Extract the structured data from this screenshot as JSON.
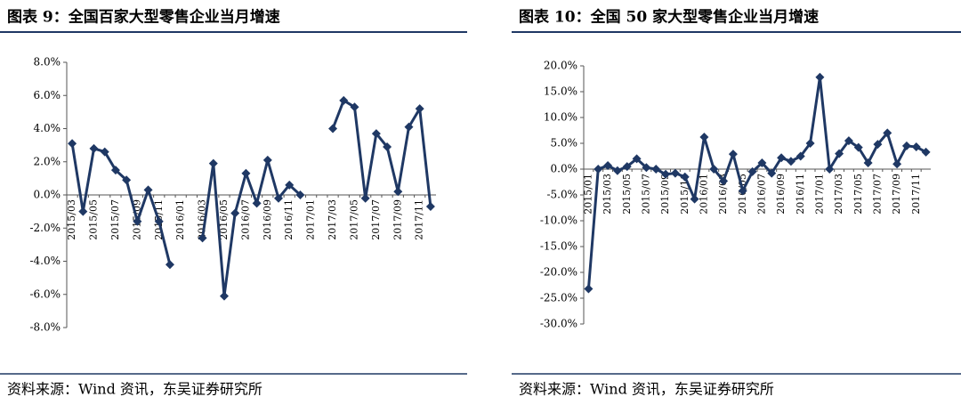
{
  "chart_data": [
    {
      "type": "line",
      "title": "图表 9：全国百家大型零售企业当月增速",
      "source": "资料来源：Wind 资讯，东吴证券研究所",
      "categories": [
        "2015/03",
        null,
        "2015/05",
        null,
        "2015/07",
        null,
        "2015/09",
        null,
        "2015/11",
        null,
        "2016/01",
        null,
        "2016/03",
        null,
        "2016/05",
        null,
        "2016/07",
        null,
        "2016/09",
        null,
        "2016/11",
        null,
        "2017/01",
        null,
        "2017/03",
        null,
        "2017/05",
        null,
        "2017/07",
        null,
        "2017/09",
        null,
        "2017/11",
        null
      ],
      "series": [
        {
          "color": "#1f3864",
          "values": [
            3.1,
            -1.0,
            2.8,
            2.6,
            1.5,
            0.9,
            -1.6,
            0.3,
            -1.6,
            -4.2,
            null,
            null,
            -2.6,
            1.9,
            -6.1,
            -1.1,
            1.3,
            -0.5,
            2.1,
            -0.2,
            0.6,
            0.0,
            null,
            null,
            4.0,
            5.7,
            5.3,
            -0.2,
            3.7,
            2.9,
            0.2,
            4.1,
            5.2,
            -0.7
          ]
        }
      ],
      "ylim": [
        -8,
        8
      ],
      "yticks": [
        {
          "value": -8,
          "label": "-8.0%"
        },
        {
          "value": -6,
          "label": "-6.0%"
        },
        {
          "value": -4,
          "label": "-4.0%"
        },
        {
          "value": -2,
          "label": "-2.0%"
        },
        {
          "value": 0,
          "label": "0.0%"
        },
        {
          "value": 2,
          "label": "2.0%"
        },
        {
          "value": 4,
          "label": "4.0%"
        },
        {
          "value": 6,
          "label": "6.0%"
        },
        {
          "value": 8,
          "label": "8.0%"
        }
      ]
    },
    {
      "type": "line",
      "title": "图表 10：全国 50 家大型零售企业当月增速",
      "source": "资料来源：Wind 资讯，东吴证券研究所",
      "categories": [
        "2015/01",
        null,
        "2015/03",
        null,
        "2015/05",
        null,
        "2015/07",
        null,
        "2015/09",
        null,
        "2015/11",
        null,
        "2016/01",
        null,
        "2016/03",
        null,
        "2016/05",
        null,
        "2016/07",
        null,
        "2016/09",
        null,
        "2016/11",
        null,
        "2017/01",
        null,
        "2017/03",
        null,
        "2017/05",
        null,
        "2017/07",
        null,
        "2017/09",
        null,
        "2017/11",
        null
      ],
      "series": [
        {
          "color": "#1f3864",
          "values": [
            -23.2,
            0.0,
            0.7,
            -0.3,
            0.5,
            2.0,
            0.3,
            0.0,
            -1.0,
            -0.8,
            -1.5,
            -5.8,
            6.2,
            0.0,
            -2.3,
            2.9,
            -4.2,
            -0.5,
            1.2,
            -0.8,
            2.2,
            1.5,
            2.5,
            5.0,
            17.8,
            0.0,
            3.0,
            5.5,
            4.2,
            1.2,
            4.8,
            7.0,
            1.0,
            4.5,
            4.3,
            3.3
          ]
        }
      ],
      "ylim": [
        -30,
        20
      ],
      "yticks": [
        {
          "value": -30,
          "label": "-30.0%"
        },
        {
          "value": -25,
          "label": "-25.0%"
        },
        {
          "value": -20,
          "label": "-20.0%"
        },
        {
          "value": -15,
          "label": "-15.0%"
        },
        {
          "value": -10,
          "label": "-10.0%"
        },
        {
          "value": -5,
          "label": "-5.0%"
        },
        {
          "value": 0,
          "label": "0.0%"
        },
        {
          "value": 5,
          "label": "5.0%"
        },
        {
          "value": 10,
          "label": "10.0%"
        },
        {
          "value": 15,
          "label": "15.0%"
        },
        {
          "value": 20,
          "label": "20.0%"
        }
      ]
    }
  ]
}
